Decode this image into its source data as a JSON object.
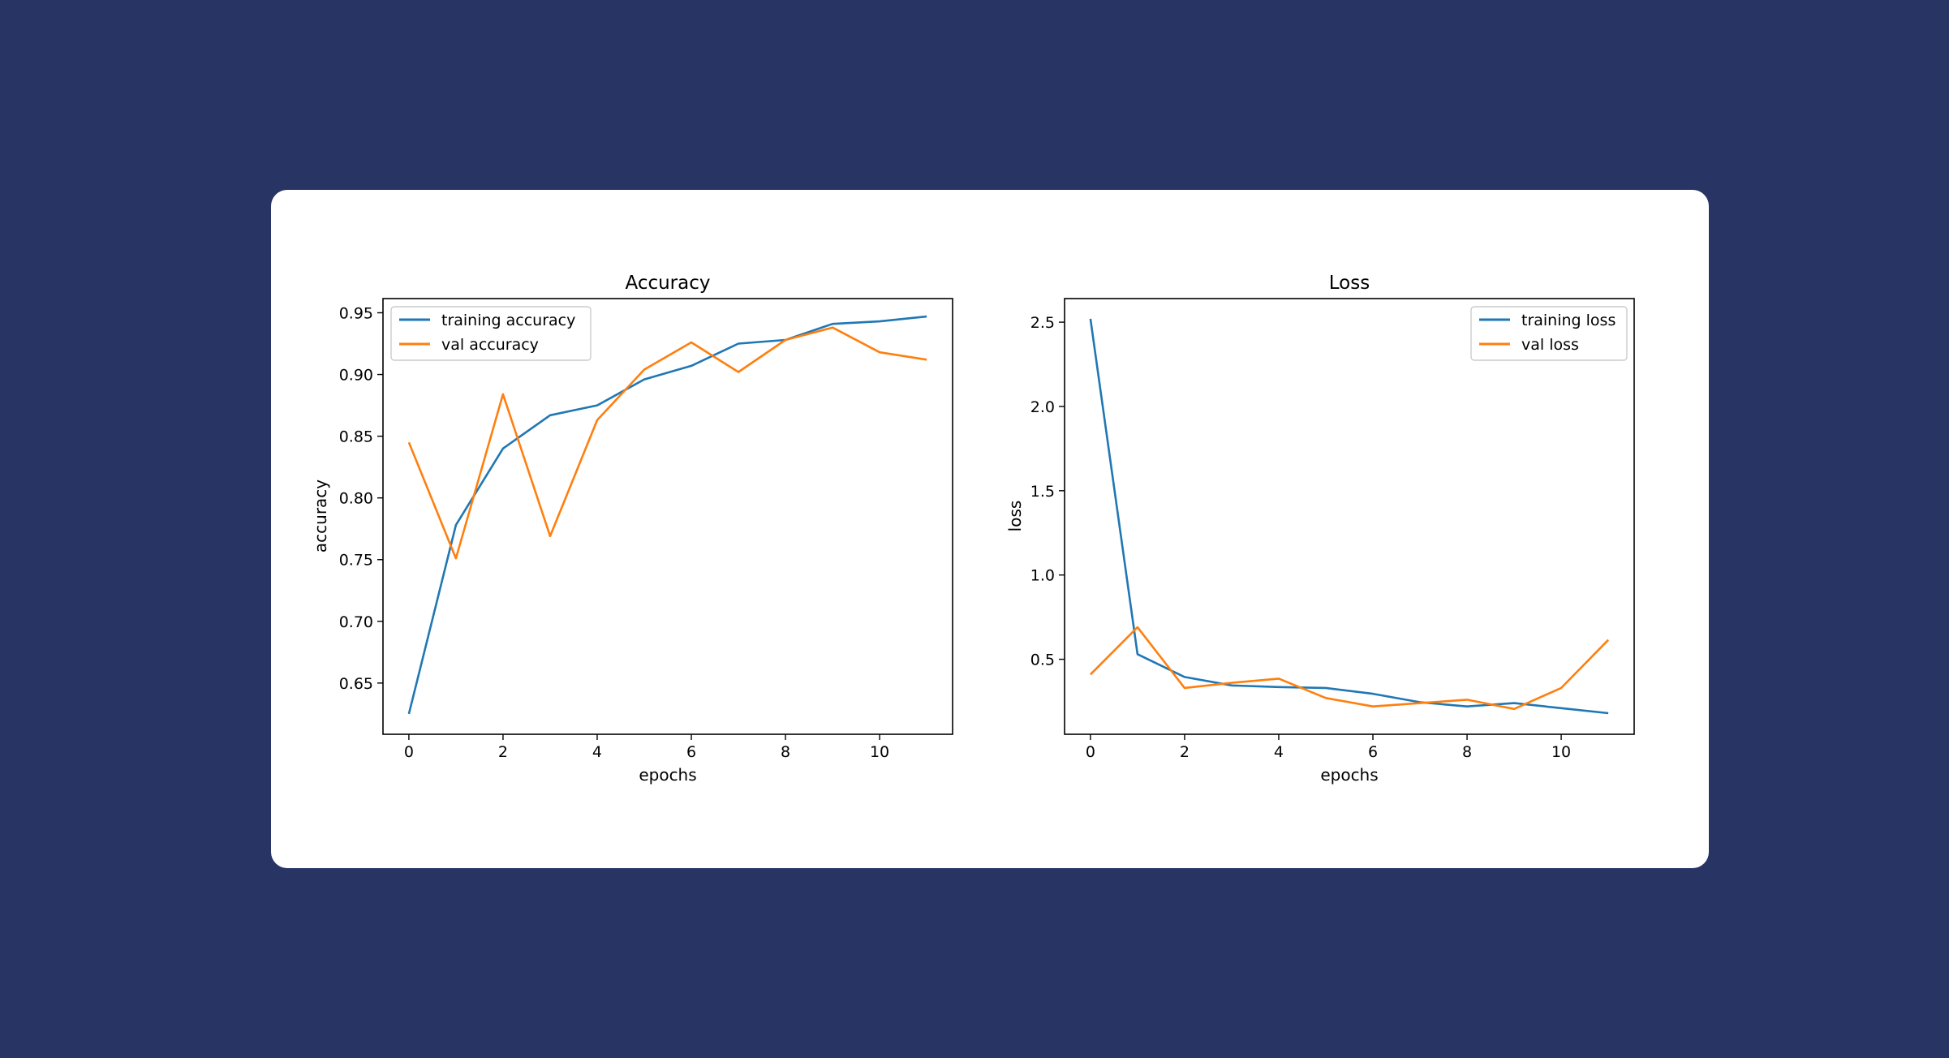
{
  "theme": {
    "page_background": "#283464",
    "card_background": "#ffffff",
    "training_color": "#1f77b4",
    "val_color": "#ff7f0e"
  },
  "chart_data": [
    {
      "type": "line",
      "title": "Accuracy",
      "xlabel": "epochs",
      "ylabel": "accuracy",
      "x": [
        0,
        1,
        2,
        3,
        4,
        5,
        6,
        7,
        8,
        9,
        10,
        11
      ],
      "xlim": [
        -0.55,
        11.55
      ],
      "ylim": [
        0.6085,
        0.9615
      ],
      "xticks": [
        0,
        2,
        4,
        6,
        8,
        10
      ],
      "xtick_labels": [
        "0",
        "2",
        "4",
        "6",
        "8",
        "10"
      ],
      "yticks": [
        0.65,
        0.7,
        0.75,
        0.8,
        0.85,
        0.9,
        0.95
      ],
      "ytick_labels": [
        "0.65",
        "0.70",
        "0.75",
        "0.80",
        "0.85",
        "0.90",
        "0.95"
      ],
      "legend_position": "upper-left",
      "grid": false,
      "series": [
        {
          "name": "training accuracy",
          "color": "#1f77b4",
          "values": [
            0.625,
            0.778,
            0.84,
            0.867,
            0.875,
            0.896,
            0.907,
            0.925,
            0.928,
            0.941,
            0.943,
            0.947
          ]
        },
        {
          "name": "val accuracy",
          "color": "#ff7f0e",
          "values": [
            0.845,
            0.751,
            0.884,
            0.769,
            0.863,
            0.904,
            0.926,
            0.902,
            0.928,
            0.938,
            0.918,
            0.912
          ]
        }
      ]
    },
    {
      "type": "line",
      "title": "Loss",
      "xlabel": "epochs",
      "ylabel": "loss",
      "x": [
        0,
        1,
        2,
        3,
        4,
        5,
        6,
        7,
        8,
        9,
        10,
        11
      ],
      "xlim": [
        -0.55,
        11.55
      ],
      "ylim": [
        0.055,
        2.64
      ],
      "xticks": [
        0,
        2,
        4,
        6,
        8,
        10
      ],
      "xtick_labels": [
        "0",
        "2",
        "4",
        "6",
        "8",
        "10"
      ],
      "yticks": [
        0.5,
        1.0,
        1.5,
        2.0,
        2.5
      ],
      "ytick_labels": [
        "0.5",
        "1.0",
        "1.5",
        "2.0",
        "2.5"
      ],
      "legend_position": "upper-right",
      "grid": false,
      "series": [
        {
          "name": "training loss",
          "color": "#1f77b4",
          "values": [
            2.52,
            0.53,
            0.395,
            0.345,
            0.335,
            0.33,
            0.295,
            0.245,
            0.22,
            0.24,
            0.21,
            0.18
          ]
        },
        {
          "name": "val loss",
          "color": "#ff7f0e",
          "values": [
            0.41,
            0.69,
            0.33,
            0.36,
            0.385,
            0.27,
            0.22,
            0.24,
            0.26,
            0.205,
            0.33,
            0.615
          ]
        }
      ]
    }
  ]
}
